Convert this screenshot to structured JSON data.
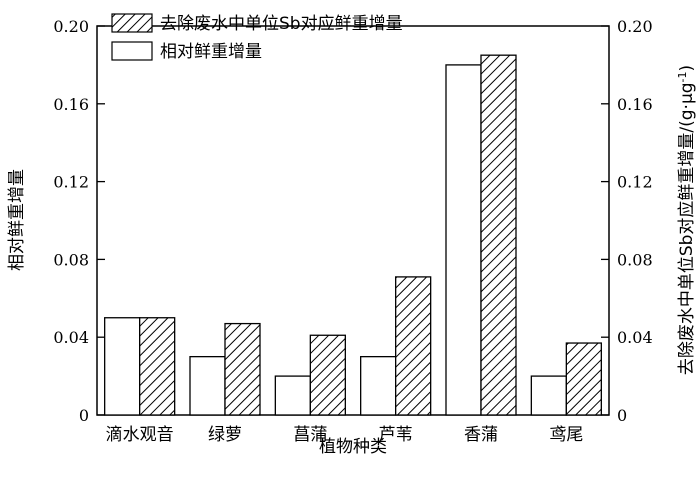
{
  "chart_data": {
    "type": "bar",
    "categories": [
      "滴水观音",
      "绿萝",
      "菖蒲",
      "芦苇",
      "香蒲",
      "鸢尾"
    ],
    "series": [
      {
        "name": "相对鲜重增量",
        "values": [
          0.05,
          0.03,
          0.02,
          0.03,
          0.18,
          0.02
        ],
        "fill": "white"
      },
      {
        "name": "去除废水中单位Sb对应鲜重增量",
        "values": [
          0.05,
          0.047,
          0.041,
          0.071,
          0.185,
          0.037
        ],
        "fill": "hatch"
      }
    ],
    "xlabel": "植物种类",
    "ylabel": "相对鲜重增量",
    "y2label": "去除废水中单位Sb对应鲜重增量/(g·μg",
    "y2label_sup": "-1",
    "y2label_end": ")",
    "ylim": [
      0,
      0.2
    ],
    "y2lim": [
      0,
      0.2
    ],
    "yticks": [
      "0",
      "0.04",
      "0.08",
      "0.12",
      "0.16",
      "0.20"
    ],
    "y2ticks": [
      "0",
      "0.04",
      "0.08",
      "0.12",
      "0.16",
      "0.20"
    ],
    "legend_position": "top-left",
    "grid": false
  }
}
